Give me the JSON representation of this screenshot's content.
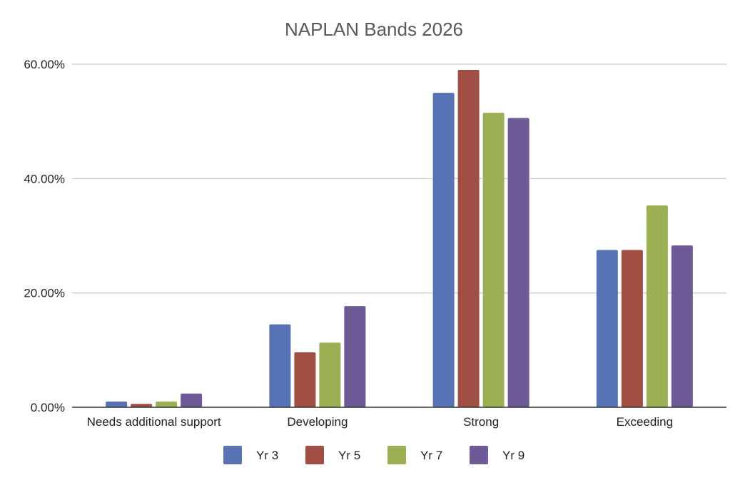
{
  "chart_data": {
    "type": "bar",
    "title": "NAPLAN Bands 2026",
    "categories": [
      "Needs additional support",
      "Developing",
      "Strong",
      "Exceeding"
    ],
    "series": [
      {
        "name": "Yr 3",
        "color": "#5873B5",
        "values": [
          1.0,
          14.5,
          55.0,
          27.5
        ]
      },
      {
        "name": "Yr 5",
        "color": "#A14E45",
        "values": [
          0.6,
          9.6,
          59.0,
          27.5
        ]
      },
      {
        "name": "Yr 7",
        "color": "#9AB052",
        "values": [
          1.0,
          11.3,
          51.5,
          35.3
        ]
      },
      {
        "name": "Yr 9",
        "color": "#6E5A97",
        "values": [
          2.4,
          17.7,
          50.6,
          28.3
        ]
      }
    ],
    "y_ticks": [
      "0.00%",
      "20.00%",
      "40.00%",
      "60.00%"
    ],
    "ylim": [
      0,
      60
    ],
    "grid": true,
    "legend_position": "bottom"
  }
}
